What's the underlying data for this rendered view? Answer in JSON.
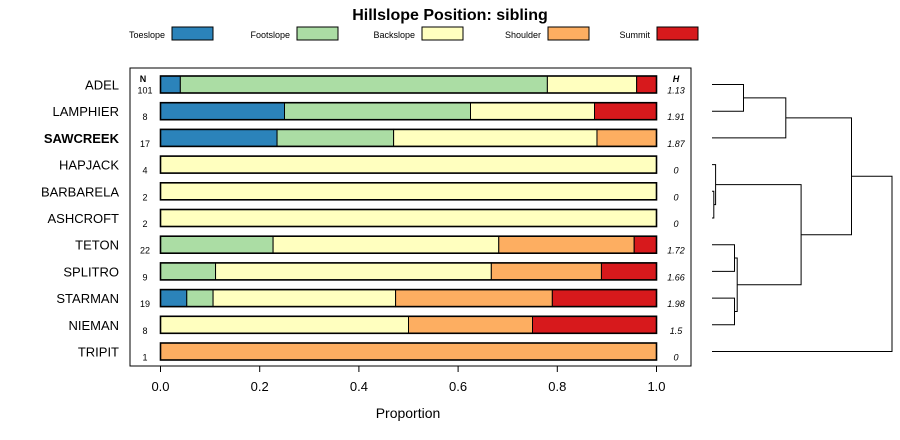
{
  "chart_data": {
    "type": "bar",
    "subtype": "stacked-horizontal-proportion",
    "title": "Hillslope Position: sibling",
    "xlabel": "Proportion",
    "ylabel": "",
    "xlim": [
      0,
      1
    ],
    "x_ticks": [
      0,
      0.2,
      0.4,
      0.6,
      0.8,
      1
    ],
    "x_tick_labels": [
      "0.0",
      "0.2",
      "0.4",
      "0.6",
      "0.8",
      "1.0"
    ],
    "n_header": "N",
    "h_header": "H",
    "legend": [
      {
        "name": "Toeslope",
        "color": "#2b83ba"
      },
      {
        "name": "Footslope",
        "color": "#abdda4"
      },
      {
        "name": "Backslope",
        "color": "#ffffbf"
      },
      {
        "name": "Shoulder",
        "color": "#fdae61"
      },
      {
        "name": "Summit",
        "color": "#d7191c"
      }
    ],
    "series_order": [
      "Toeslope",
      "Footslope",
      "Backslope",
      "Shoulder",
      "Summit"
    ],
    "rows": [
      {
        "label": "ADEL",
        "bold": false,
        "n": "101",
        "h": "1.13",
        "values": [
          0.04,
          0.74,
          0.18,
          0.0,
          0.04
        ]
      },
      {
        "label": "LAMPHIER",
        "bold": false,
        "n": "8",
        "h": "1.91",
        "values": [
          0.25,
          0.375,
          0.25,
          0.0,
          0.125
        ]
      },
      {
        "label": "SAWCREEK",
        "bold": true,
        "n": "17",
        "h": "1.87",
        "values": [
          0.235,
          0.235,
          0.41,
          0.12,
          0.0
        ]
      },
      {
        "label": "HAPJACK",
        "bold": false,
        "n": "4",
        "h": "0",
        "values": [
          0,
          0,
          1,
          0,
          0
        ]
      },
      {
        "label": "BARBARELA",
        "bold": false,
        "n": "2",
        "h": "0",
        "values": [
          0,
          0,
          1,
          0,
          0
        ]
      },
      {
        "label": "ASHCROFT",
        "bold": false,
        "n": "2",
        "h": "0",
        "values": [
          0,
          0,
          1,
          0,
          0
        ]
      },
      {
        "label": "TETON",
        "bold": false,
        "n": "22",
        "h": "1.72",
        "values": [
          0.0,
          0.227,
          0.455,
          0.273,
          0.045
        ]
      },
      {
        "label": "SPLITRO",
        "bold": false,
        "n": "9",
        "h": "1.66",
        "values": [
          0.0,
          0.111,
          0.556,
          0.222,
          0.111
        ]
      },
      {
        "label": "STARMAN",
        "bold": false,
        "n": "19",
        "h": "1.98",
        "values": [
          0.053,
          0.053,
          0.368,
          0.316,
          0.21
        ]
      },
      {
        "label": "NIEMAN",
        "bold": false,
        "n": "8",
        "h": "1.5",
        "values": [
          0.0,
          0.0,
          0.5,
          0.25,
          0.25
        ]
      },
      {
        "label": "TRIPIT",
        "bold": false,
        "n": "1",
        "h": "0",
        "values": [
          0,
          0,
          0,
          1,
          0
        ]
      }
    ],
    "dendrogram": [
      {
        "a": "ADEL",
        "b": "LAMPHIER",
        "height": 0.35
      },
      {
        "a": "c0",
        "b": "SAWCREEK",
        "height": 0.82
      },
      {
        "a": "BARBARELA",
        "b": "ASHCROFT",
        "height": 0.02
      },
      {
        "a": "HAPJACK",
        "b": "c2",
        "height": 0.04
      },
      {
        "a": "TETON",
        "b": "SPLITRO",
        "height": 0.25
      },
      {
        "a": "STARMAN",
        "b": "NIEMAN",
        "height": 0.25
      },
      {
        "a": "c4",
        "b": "c5",
        "height": 0.28
      },
      {
        "a": "c3",
        "b": "c6",
        "height": 0.99
      },
      {
        "a": "c1",
        "b": "c7",
        "height": 1.55
      },
      {
        "a": "c8",
        "b": "TRIPIT",
        "height": 2.0
      }
    ]
  }
}
